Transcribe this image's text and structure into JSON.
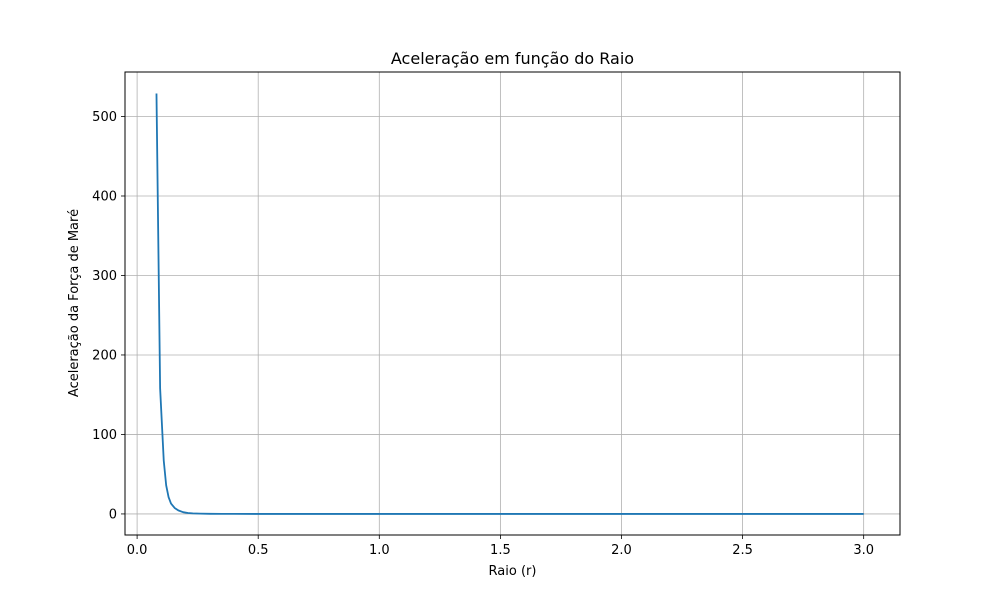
{
  "chart_data": {
    "type": "line",
    "title": "Aceleração em função do Raio",
    "xlabel": "Raio (r)",
    "ylabel": "Aceleração da Força de Maré",
    "xlim": [
      -0.05,
      3.15
    ],
    "ylim": [
      -26.5,
      556
    ],
    "xticks": [
      0.0,
      0.5,
      1.0,
      1.5,
      2.0,
      2.5,
      3.0
    ],
    "xtick_labels": [
      "0.0",
      "0.5",
      "1.0",
      "1.5",
      "2.0",
      "2.5",
      "3.0"
    ],
    "yticks": [
      0,
      100,
      200,
      300,
      400,
      500
    ],
    "ytick_labels": [
      "0",
      "100",
      "200",
      "300",
      "400",
      "500"
    ],
    "grid": true,
    "line_color": "#1f77b4",
    "series": [
      {
        "x": [
          0.08,
          0.095,
          0.11,
          0.12,
          0.13,
          0.14,
          0.155,
          0.17,
          0.19,
          0.21,
          0.23,
          0.26,
          0.3,
          0.35,
          0.4,
          0.5,
          0.75,
          1.0,
          1.5,
          2.0,
          2.5,
          3.0
        ],
        "y": [
          529,
          158,
          67,
          36,
          21,
          13,
          7.5,
          4.5,
          2.2,
          1.2,
          0.7,
          0.35,
          0.15,
          0.06,
          0.03,
          0.01,
          0.0,
          0.0,
          0.0,
          0.0,
          0.0,
          0.0
        ]
      }
    ]
  }
}
